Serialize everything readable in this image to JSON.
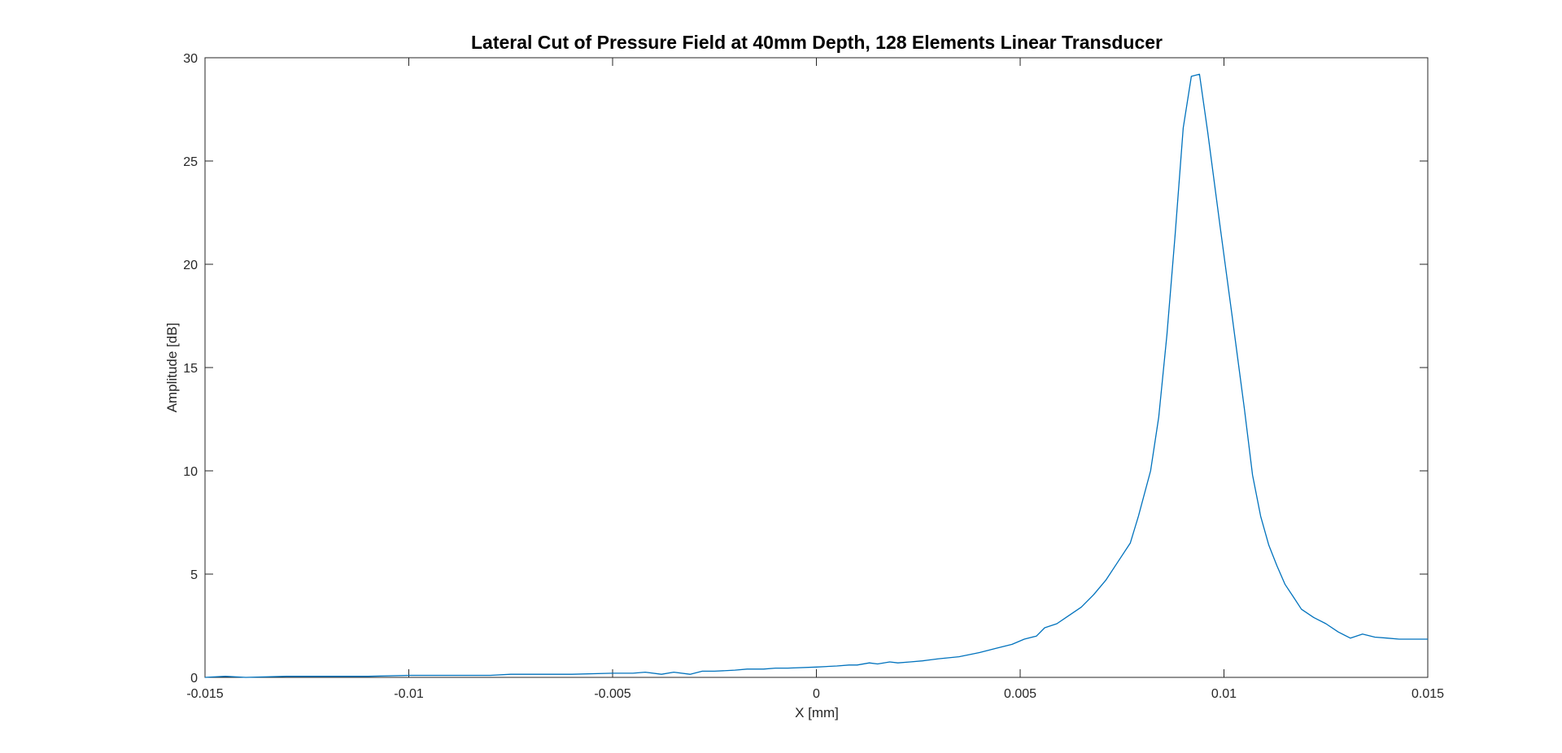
{
  "chart_data": {
    "type": "line",
    "title": "Lateral Cut of Pressure Field at 40mm Depth, 128 Elements Linear Transducer",
    "xlabel": "X [mm]",
    "ylabel": "Amplitude [dB]",
    "xlim": [
      -0.015,
      0.015
    ],
    "ylim": [
      0,
      30
    ],
    "grid": false,
    "legend": "none",
    "xticks": [
      -0.015,
      -0.01,
      -0.005,
      0,
      0.005,
      0.01,
      0.015
    ],
    "xtick_labels": [
      "-0.015",
      "-0.01",
      "-0.005",
      "0",
      "0.005",
      "0.01",
      "0.015"
    ],
    "yticks": [
      0,
      5,
      10,
      15,
      20,
      25,
      30
    ],
    "ytick_labels": [
      "0",
      "5",
      "10",
      "15",
      "20",
      "25",
      "30"
    ],
    "series": [
      {
        "color": "#0072BD",
        "x": [
          -0.015,
          -0.0145,
          -0.014,
          -0.013,
          -0.012,
          -0.011,
          -0.01,
          -0.009,
          -0.008,
          -0.0075,
          -0.007,
          -0.006,
          -0.005,
          -0.0045,
          -0.0042,
          -0.0038,
          -0.0035,
          -0.0031,
          -0.0028,
          -0.0025,
          -0.002,
          -0.0017,
          -0.0013,
          -0.001,
          -0.0007,
          0,
          0.0005,
          0.0008,
          0.001,
          0.0013,
          0.0015,
          0.0018,
          0.002,
          0.0023,
          0.0026,
          0.003,
          0.0035,
          0.004,
          0.0044,
          0.0048,
          0.0051,
          0.0054,
          0.0056,
          0.0059,
          0.0062,
          0.0065,
          0.0068,
          0.0071,
          0.0074,
          0.0077,
          0.0079,
          0.0082,
          0.0084,
          0.0086,
          0.0088,
          0.009,
          0.0092,
          0.0094,
          0.0096,
          0.0099,
          0.0102,
          0.0105,
          0.0107,
          0.0109,
          0.0111,
          0.0113,
          0.0115,
          0.0117,
          0.0119,
          0.0122,
          0.0125,
          0.0128,
          0.0131,
          0.0134,
          0.0137,
          0.014,
          0.0143,
          0.0146,
          0.015
        ],
        "y": [
          0.0,
          0.05,
          0.0,
          0.05,
          0.05,
          0.05,
          0.1,
          0.1,
          0.1,
          0.15,
          0.15,
          0.15,
          0.2,
          0.2,
          0.25,
          0.15,
          0.25,
          0.15,
          0.3,
          0.3,
          0.35,
          0.4,
          0.4,
          0.45,
          0.45,
          0.5,
          0.55,
          0.6,
          0.6,
          0.7,
          0.65,
          0.75,
          0.7,
          0.75,
          0.8,
          0.9,
          1.0,
          1.2,
          1.4,
          1.6,
          1.85,
          2.0,
          2.4,
          2.6,
          3.0,
          3.4,
          4.0,
          4.7,
          5.6,
          6.5,
          7.8,
          10.0,
          12.6,
          16.6,
          21.4,
          26.6,
          29.1,
          29.2,
          26.4,
          21.9,
          17.5,
          13.0,
          9.8,
          7.8,
          6.4,
          5.4,
          4.5,
          3.9,
          3.3,
          2.9,
          2.6,
          2.2,
          1.9,
          2.1,
          1.95,
          1.9,
          1.85,
          1.85,
          1.85
        ]
      }
    ]
  }
}
